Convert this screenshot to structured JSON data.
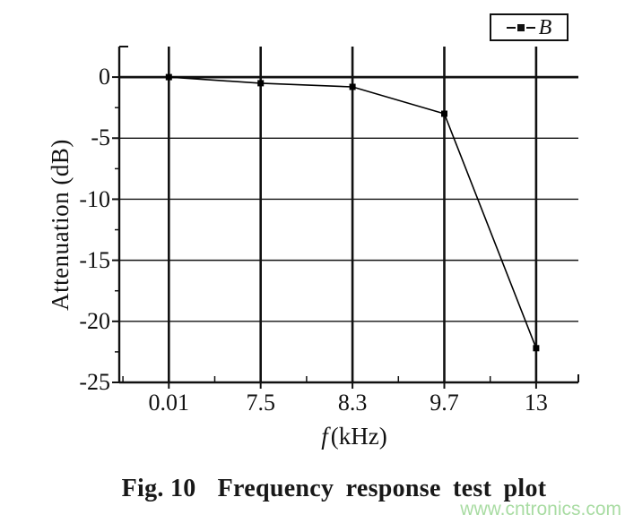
{
  "chart_data": {
    "type": "line",
    "categories": [
      "0.01",
      "7.5",
      "8.3",
      "9.7",
      "13"
    ],
    "series": [
      {
        "name": "B",
        "marker": "filled-square",
        "color": "#000000",
        "values": [
          0,
          -0.5,
          -0.8,
          -3.0,
          -22.2
        ]
      }
    ],
    "xlabel": "f (kHz)",
    "xlabel_var": "f",
    "xlabel_unit": "(kHz)",
    "ylabel": "Attenuation (dB)",
    "y_tick_labels": [
      "0",
      "-5",
      "-10",
      "-15",
      "-20",
      "-25"
    ],
    "y_tick_values": [
      0,
      -5,
      -10,
      -15,
      -20,
      -25
    ],
    "ylim": [
      2.5,
      -25
    ],
    "grid": true,
    "grid_color": "#111111",
    "legend_position": "top-right"
  },
  "legend": {
    "entry_label": "B"
  },
  "caption": {
    "fig_label": "Fig. 10",
    "text": "Frequency response test plot"
  },
  "watermark": {
    "text": "www.cntronics.com",
    "color": "#a9dca3"
  }
}
